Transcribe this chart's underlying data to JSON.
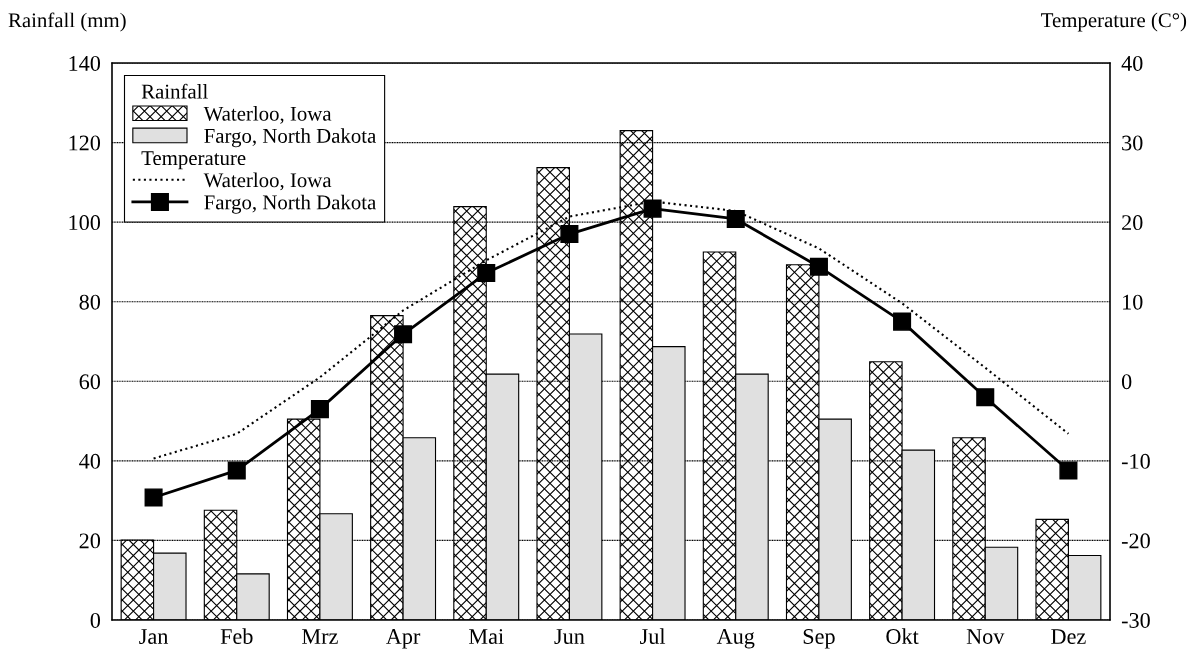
{
  "chart_data": {
    "type": "bar",
    "ylabel": "Rainfall (mm)",
    "y2label": "Temperature (C°)",
    "legend_title": "Rainfall",
    "annotations": [
      "Temperature"
    ],
    "categories": [
      "Jan",
      "Feb",
      "Mrz",
      "Apr",
      "Mai",
      "Jun",
      "Jul",
      "Aug",
      "Sep",
      "Okt",
      "Nov",
      "Dez"
    ],
    "series": [
      {
        "name": "Waterloo, Iowa",
        "color": "#000000",
        "values": [
          20.1,
          27.6,
          50.5,
          76.5,
          103.9,
          113.7,
          123,
          92.5,
          89.3,
          64.9,
          45.8,
          25.3
        ]
      },
      {
        "name": "Fargo, North Dakota",
        "color": "#e0e0e0",
        "values": [
          16.8,
          11.6,
          26.7,
          45.8,
          61.8,
          71.9,
          68.7,
          61.8,
          50.5,
          42.7,
          18.3,
          16.2
        ]
      },
      {
        "name": "Waterloo, Iowa",
        "type": "line",
        "axis": "y2",
        "color": "#000000",
        "line_style": "dotted",
        "marker": "none",
        "values": [
          -9.7,
          -6.6,
          0.5,
          8.9,
          15.2,
          20.7,
          22.6,
          21.4,
          16.7,
          9.8,
          1.7,
          -6.6
        ]
      },
      {
        "name": "Fargo, North Dakota",
        "type": "line",
        "axis": "y2",
        "color": "#000000",
        "line_style": "solid",
        "marker": "square",
        "values": [
          -14.6,
          -11.2,
          -3.5,
          5.9,
          13.6,
          18.5,
          21.7,
          20.4,
          14.4,
          7.5,
          -2.0,
          -11.2
        ]
      }
    ],
    "ylim": [
      0,
      140
    ],
    "yticks": [
      0,
      20,
      40,
      60,
      80,
      100,
      120,
      140
    ],
    "y2lim": [
      -30,
      40
    ],
    "y2ticks": [
      -30,
      -20,
      -10,
      0,
      10,
      20,
      30,
      40
    ],
    "grid": "y",
    "legend": "top left"
  }
}
